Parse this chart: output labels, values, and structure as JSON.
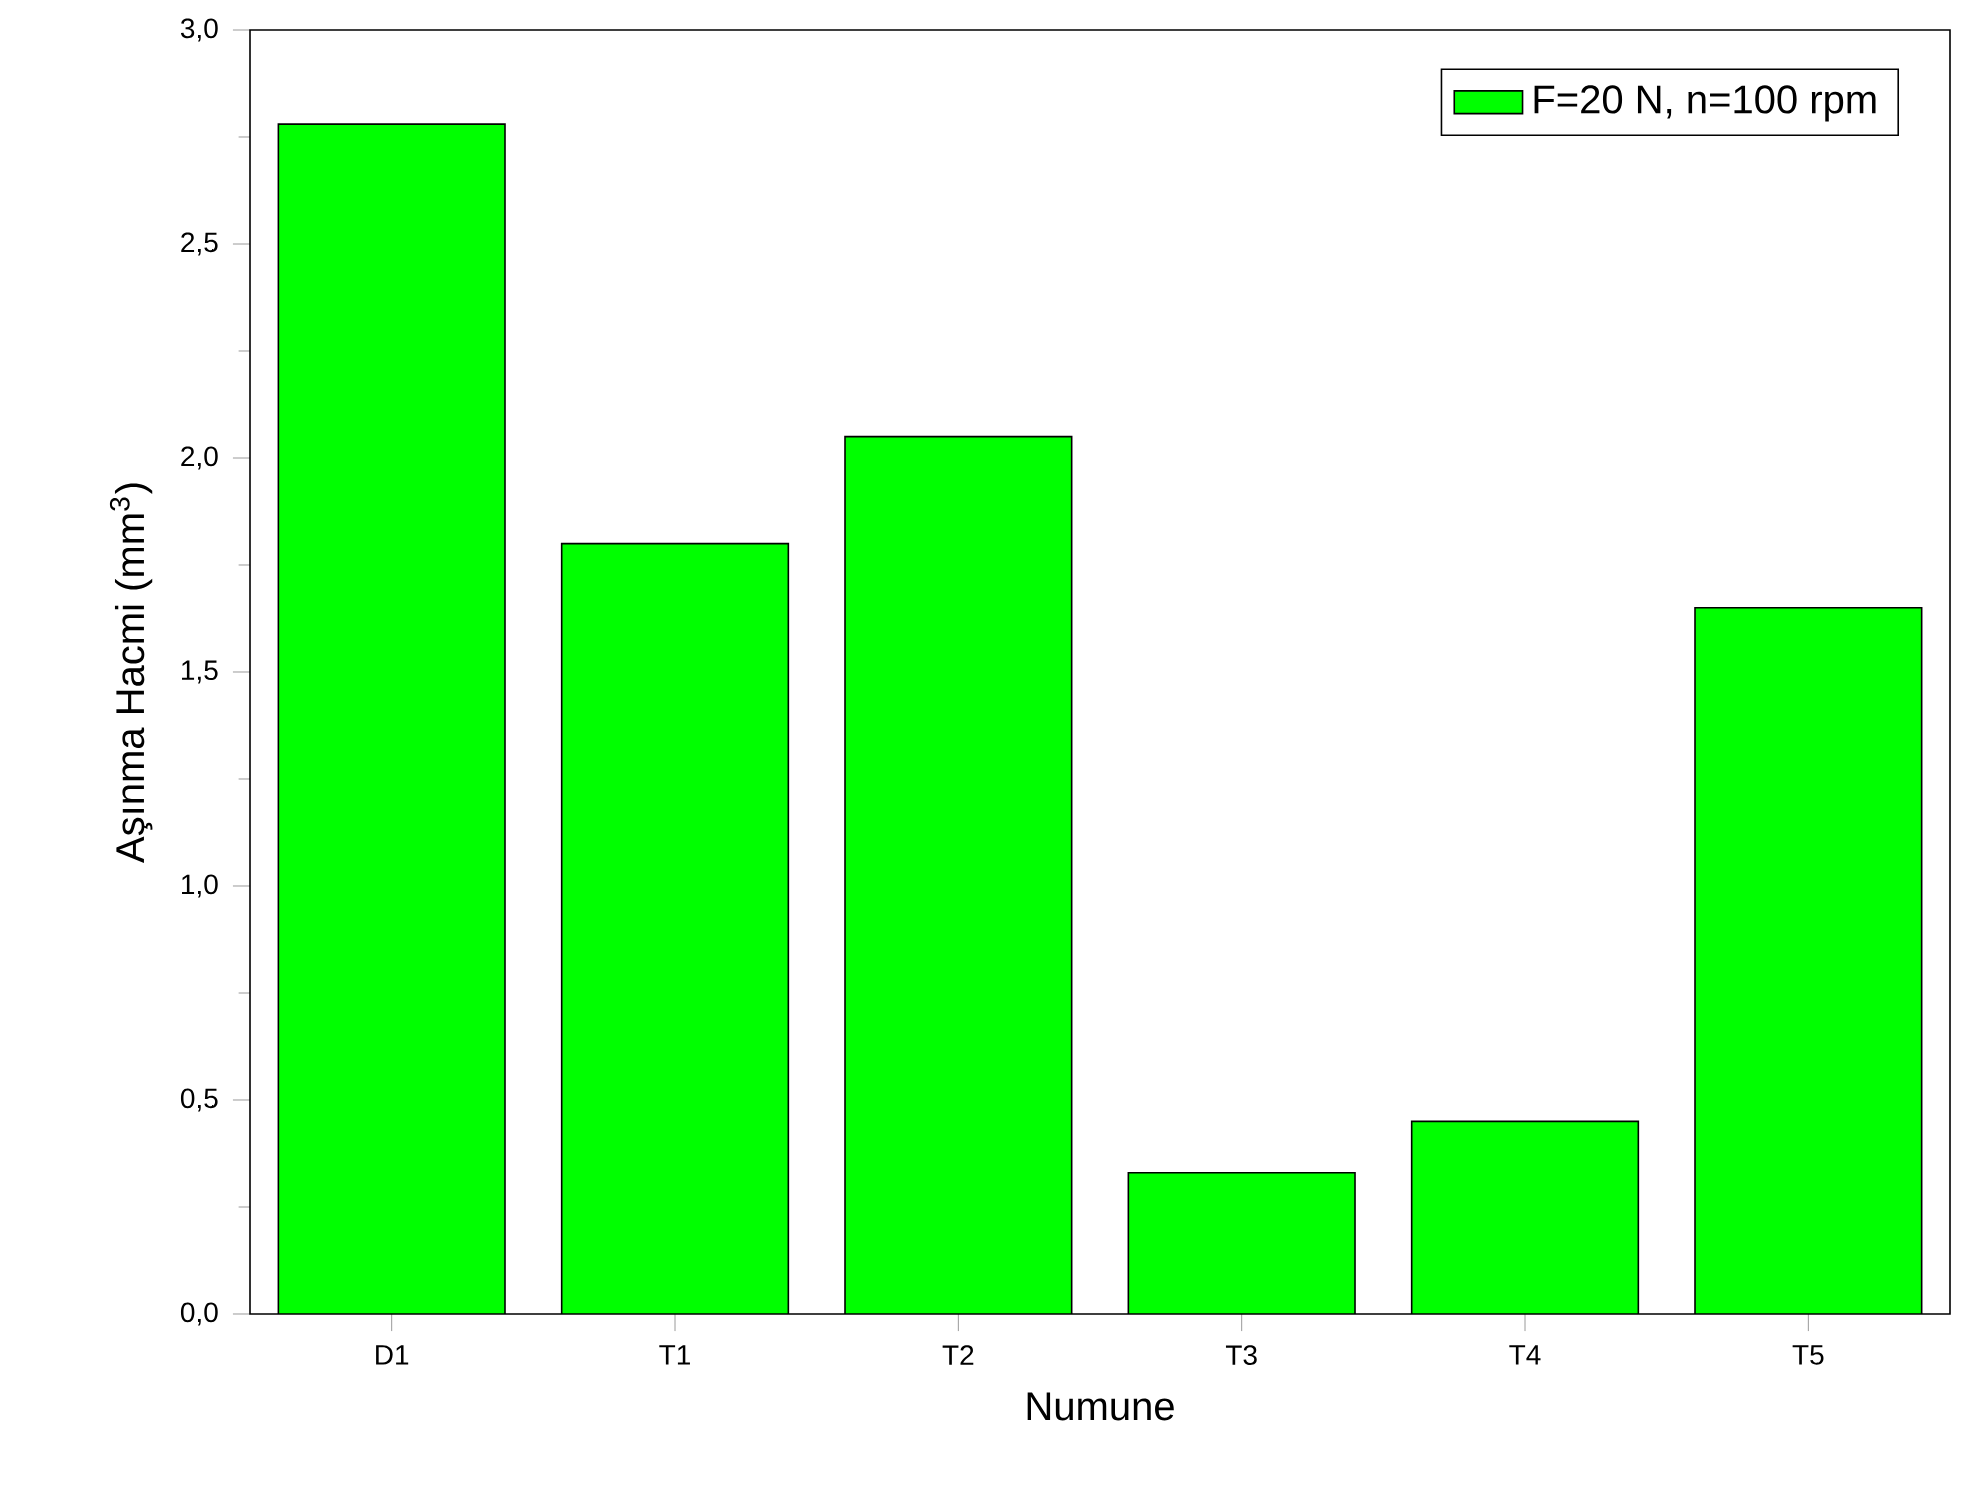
{
  "chart_data": {
    "type": "bar",
    "xlabel": "Numune",
    "ylabel": "Aşınma Hacmi (mm$^{3}$)",
    "categories": [
      "D1",
      "T1",
      "T2",
      "T3",
      "T4",
      "T5"
    ],
    "series": [
      {
        "name": "F=20 N, n=100 rpm",
        "color": "#00ff00",
        "values": [
          2.78,
          1.8,
          2.05,
          0.33,
          0.45,
          1.65
        ]
      }
    ],
    "ylim": [
      0,
      3
    ],
    "yticks": [
      {
        "value": 0,
        "label": "0,0"
      },
      {
        "value": 0.5,
        "label": "0,5"
      },
      {
        "value": 1,
        "label": "1,0"
      },
      {
        "value": 1.5,
        "label": "1,5"
      },
      {
        "value": 2,
        "label": "2,0"
      },
      {
        "value": 2.5,
        "label": "2,5"
      },
      {
        "value": 3,
        "label": "3,0"
      }
    ],
    "legend": "top right",
    "grid": false
  }
}
